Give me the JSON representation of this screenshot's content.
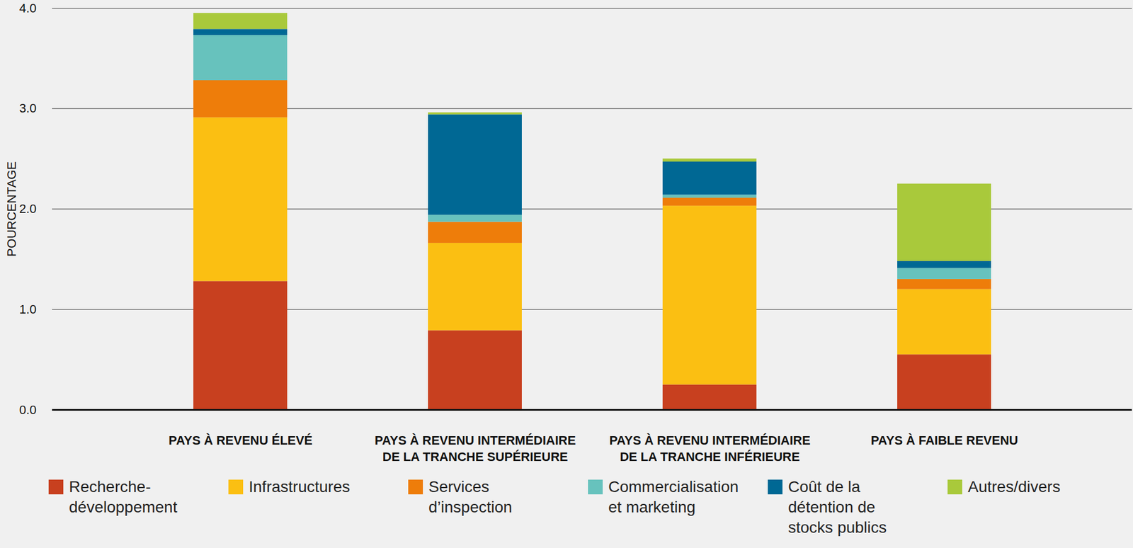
{
  "chart_data": {
    "type": "bar",
    "stacked": true,
    "grid": true,
    "legend": "bottom",
    "ylabel": "POURCENTAGE",
    "categories": [
      "PAYS À REVENU ÉLEVÉ",
      "PAYS À REVENU INTERMÉDIAIRE\nDE LA TRANCHE SUPÉRIEURE",
      "PAYS À REVENU INTERMÉDIAIRE\nDE LA TRANCHE INFÉRIEURE",
      "PAYS À FAIBLE REVENU"
    ],
    "ylim": [
      0,
      4
    ],
    "yticks": [
      0,
      1,
      2,
      3,
      4
    ],
    "series": [
      {
        "name": "Recherche-développement",
        "color": "#c8401f",
        "values": [
          1.28,
          0.79,
          0.25,
          0.55
        ]
      },
      {
        "name": "Infrastructures",
        "color": "#fbbf12",
        "values": [
          1.63,
          0.87,
          1.78,
          0.65
        ]
      },
      {
        "name": "Services d’inspection",
        "color": "#ee7d0a",
        "values": [
          0.37,
          0.21,
          0.08,
          0.1
        ]
      },
      {
        "name": "Commercialisation et marketing",
        "color": "#67c2bd",
        "values": [
          0.45,
          0.07,
          0.03,
          0.11
        ]
      },
      {
        "name": "Coût de la détention de stocks publics",
        "color": "#006894",
        "values": [
          0.06,
          1.0,
          0.33,
          0.07
        ]
      },
      {
        "name": "Autres/divers",
        "color": "#a9c93b",
        "values": [
          0.16,
          0.02,
          0.03,
          0.77
        ]
      }
    ]
  }
}
